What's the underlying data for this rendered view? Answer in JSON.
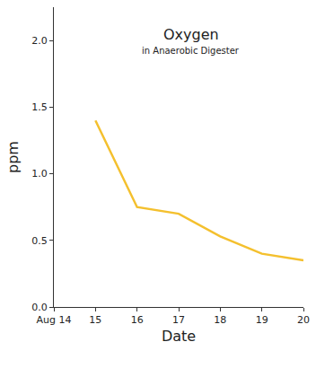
{
  "chart_data": {
    "type": "line",
    "title": "Oxygen",
    "subtitle": "in Anaerobic Digester",
    "x_label": "Date",
    "y_label": "ppm",
    "x": [
      15,
      16,
      17,
      18,
      19,
      20
    ],
    "values": [
      1.4,
      0.75,
      0.7,
      0.53,
      0.4,
      0.35
    ],
    "color": "#f4c02e",
    "xlim": [
      14,
      20
    ],
    "xticks": [
      {
        "value": 14,
        "label": "Aug 14"
      },
      15,
      16,
      17,
      18,
      19,
      20
    ],
    "ylim": [
      0,
      2.25
    ],
    "yticks": [
      {
        "value": 0,
        "label": "0.0"
      },
      0.5,
      {
        "value": 1,
        "label": "1.0"
      },
      1.5,
      {
        "value": 2,
        "label": "2.0"
      }
    ],
    "grid": false
  }
}
